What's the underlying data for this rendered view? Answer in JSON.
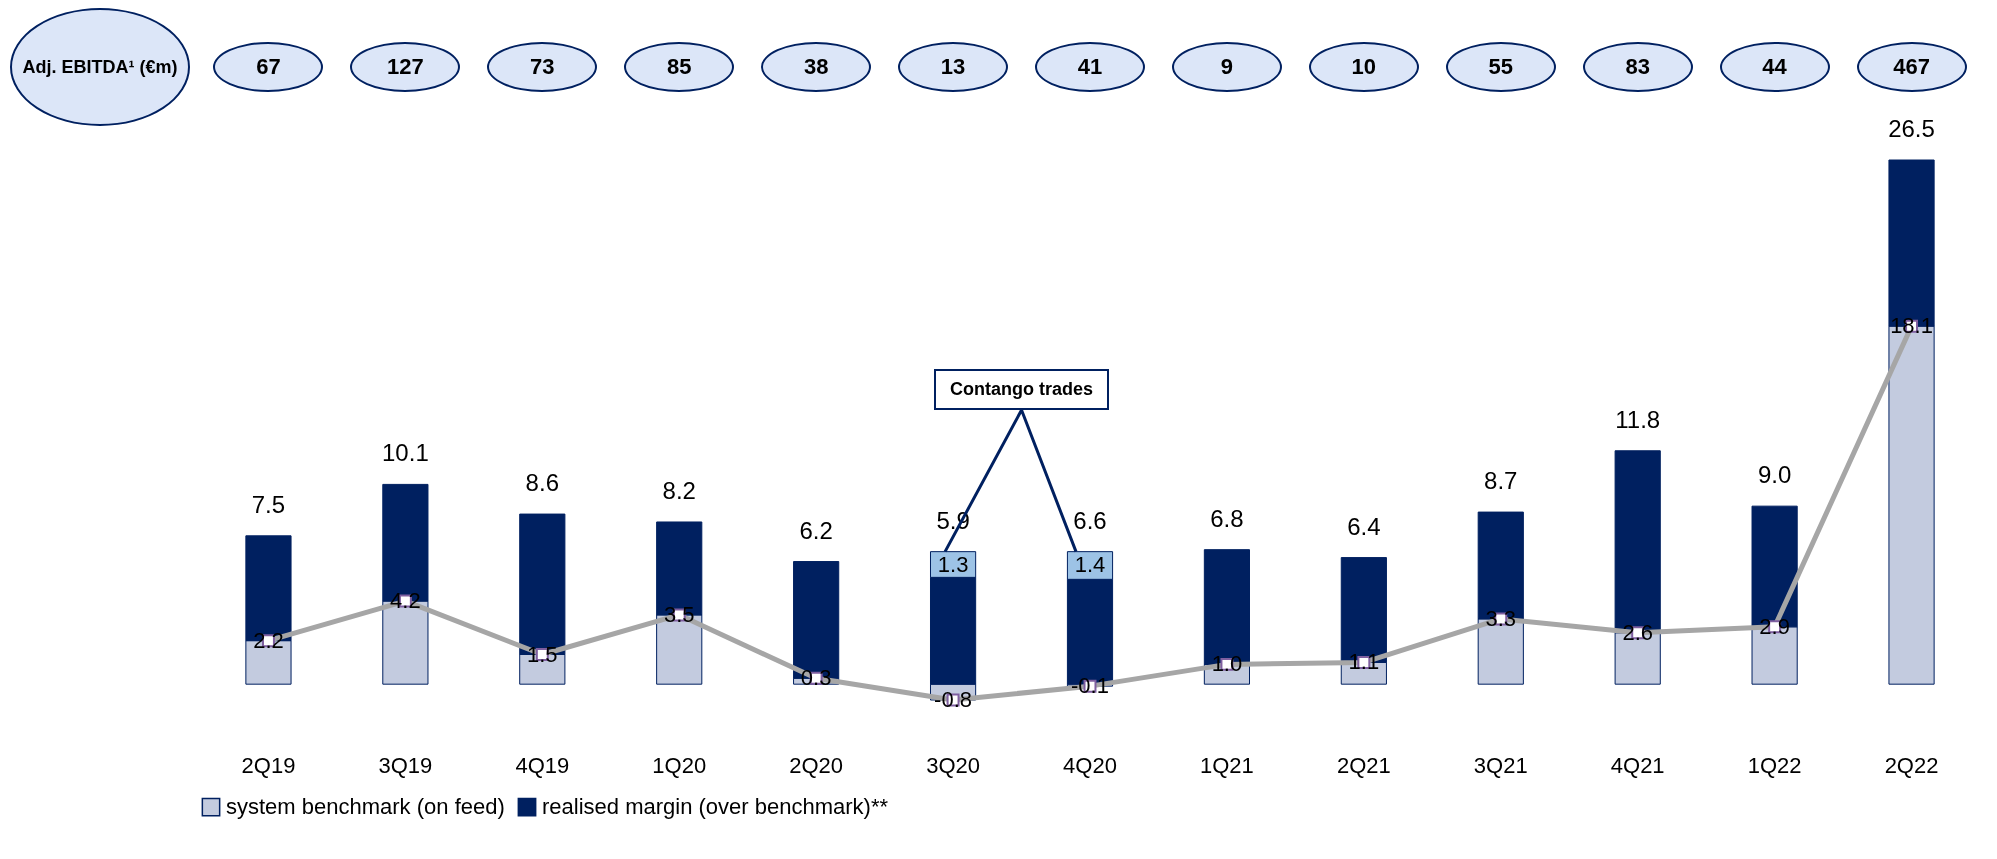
{
  "chart_data": {
    "type": "bar",
    "stacked": true,
    "legend": "bottom",
    "marker": "square",
    "tick_labels": "x",
    "categories": [
      "2Q19",
      "3Q19",
      "4Q19",
      "1Q20",
      "2Q20",
      "3Q20",
      "4Q20",
      "1Q21",
      "2Q21",
      "3Q21",
      "4Q21",
      "1Q22",
      "2Q22"
    ],
    "series": [
      {
        "name": "system benchmark (on feed)",
        "color": "#c3cbdf",
        "values": [
          2.2,
          4.2,
          1.5,
          3.5,
          0.3,
          -0.8,
          -0.1,
          1.0,
          1.1,
          3.3,
          2.6,
          2.9,
          18.1
        ],
        "value_labels": [
          "2.2",
          "4.2",
          "1.5",
          "3.5",
          "0.3",
          "-0.8",
          "-0.1",
          "1.0",
          "1.1",
          "3.3",
          "2.6",
          "2.9",
          "18.1"
        ]
      },
      {
        "name": "realised margin (over benchmark)**",
        "color": "#002060",
        "values": [
          5.3,
          5.9,
          7.1,
          4.7,
          5.9,
          5.4,
          5.3,
          5.8,
          5.3,
          5.4,
          9.2,
          6.1,
          8.4
        ]
      },
      {
        "color": "#9dc3e6",
        "values": [
          null,
          null,
          null,
          null,
          null,
          1.3,
          1.4,
          null,
          null,
          null,
          null,
          null,
          null
        ],
        "value_labels": [
          null,
          null,
          null,
          null,
          null,
          "1.3",
          "1.4",
          null,
          null,
          null,
          null,
          null,
          null
        ]
      },
      {
        "type": "line",
        "color": "#a6a6a6",
        "values": [
          2.2,
          4.2,
          1.5,
          3.5,
          0.3,
          -0.8,
          -0.1,
          1.0,
          1.1,
          3.3,
          2.6,
          2.9,
          18.1
        ]
      }
    ],
    "totals": [
      "7.5",
      "10.1",
      "8.6",
      "8.2",
      "6.2",
      "5.9",
      "6.6",
      "6.8",
      "6.4",
      "8.7",
      "11.8",
      "9.0",
      "26.5"
    ],
    "annotations": [
      "Adj. EBITDA¹ (€m)",
      "67",
      "127",
      "73",
      "85",
      "38",
      "13",
      "41",
      "9",
      "10",
      "55",
      "83",
      "44",
      "467",
      "Contango trades"
    ]
  }
}
